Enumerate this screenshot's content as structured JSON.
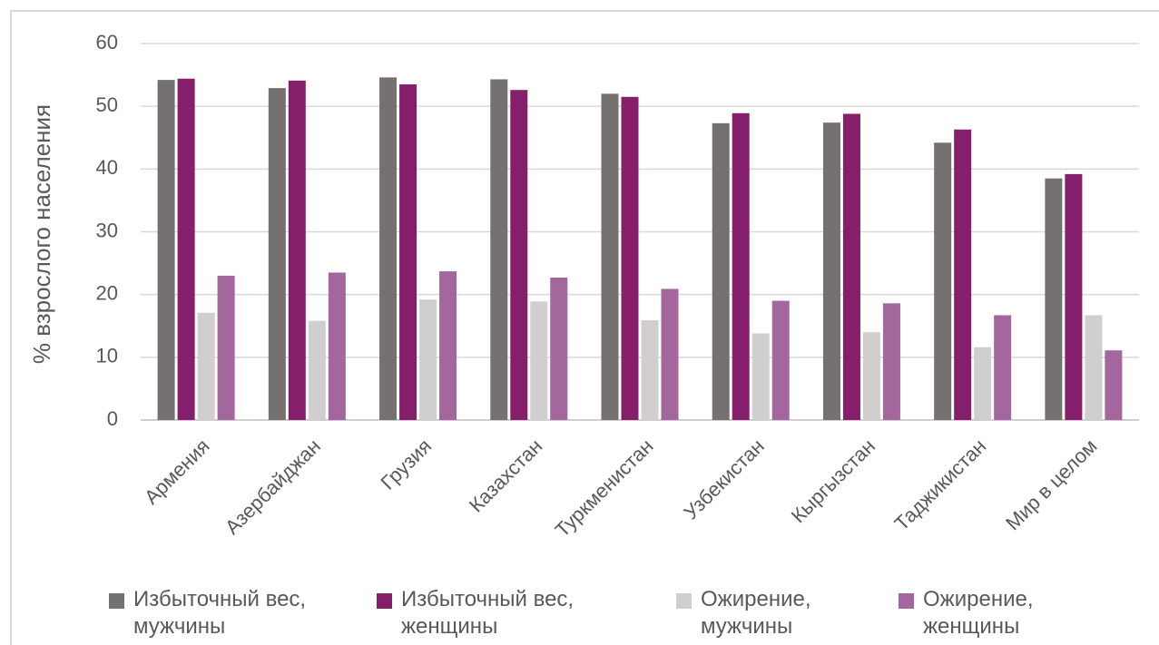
{
  "chart_data": {
    "type": "bar",
    "y_label": "% взрослого населения",
    "categories": [
      "Армения",
      "Азербайджан",
      "Грузия",
      "Казахстан",
      "Туркменистан",
      "Узбекистан",
      "Кыргызстан",
      "Таджикистан",
      "Мир в целом"
    ],
    "series": [
      {
        "name": "Избыточный вес, мужчины",
        "color": "#767171",
        "values": [
          54.2,
          52.9,
          54.6,
          54.3,
          52.0,
          47.3,
          47.4,
          44.2,
          38.5
        ]
      },
      {
        "name": "Избыточный вес, женщины",
        "color": "#861f6b",
        "values": [
          54.4,
          54.1,
          53.5,
          52.6,
          51.5,
          48.9,
          48.8,
          46.3,
          39.2
        ]
      },
      {
        "name": "Ожирение, мужчины",
        "color": "#d0cece",
        "values": [
          17.1,
          15.8,
          19.2,
          18.9,
          15.9,
          13.8,
          14.0,
          11.6,
          16.7
        ]
      },
      {
        "name": "Ожирение, женщины",
        "color": "#a3679e",
        "values": [
          23.0,
          23.5,
          23.7,
          22.7,
          20.9,
          19.0,
          18.6,
          16.7,
          11.1
        ]
      }
    ],
    "ylim": [
      0,
      60
    ],
    "yticks": [
      0,
      10,
      20,
      30,
      40,
      50,
      60
    ],
    "grid": true,
    "legend": "bottom"
  }
}
